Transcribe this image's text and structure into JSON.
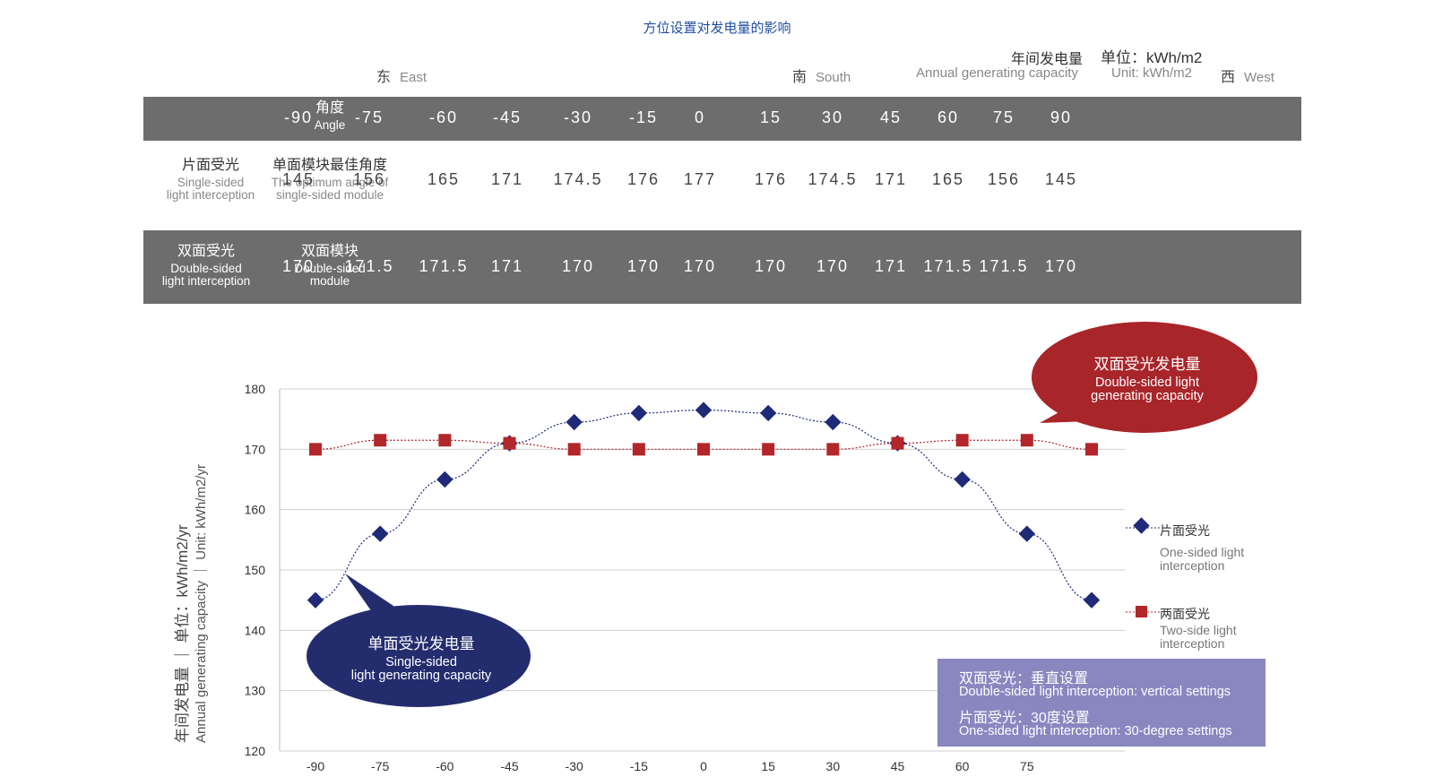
{
  "title": "方位设置对发电量的影响",
  "header": {
    "east_zh": "东",
    "east_en": "East",
    "south_zh": "南",
    "south_en": "South",
    "west_zh": "西",
    "west_en": "West",
    "annual_zh": "年间发电量",
    "annual_en": "Annual generating capacity",
    "unit_zh": "单位：kWh/m2",
    "unit_en": "Unit: kWh/m2"
  },
  "table": {
    "angle_zh": "角度",
    "angle_en": "Angle",
    "angles": [
      "-90",
      "-75",
      "-60",
      "-45",
      "-30",
      "-15",
      "0",
      "15",
      "30",
      "45",
      "60",
      "75",
      "90"
    ],
    "single_label_zh": "片面受光",
    "single_label_en1": "Single-sided",
    "single_label_en2": "light interception",
    "single_module_zh": "单面模块最佳角度",
    "single_module_en1": "The optimum angle of",
    "single_module_en2": "single-sided module",
    "single_values": [
      "145",
      "156",
      "165",
      "171",
      "174.5",
      "176",
      "177",
      "176",
      "174.5",
      "171",
      "165",
      "156",
      "145"
    ],
    "double_label_zh": "双面受光",
    "double_label_en1": "Double-sided",
    "double_label_en2": "light interception",
    "double_module_zh": "双面模块",
    "double_module_en1": "Double-sided",
    "double_module_en2": "module",
    "double_values": [
      "170",
      "171.5",
      "171.5",
      "171",
      "170",
      "170",
      "170",
      "170",
      "170",
      "171",
      "171.5",
      "171.5",
      "170"
    ]
  },
  "bubbles": {
    "red_zh": "双面受光发电量",
    "red_en1": "Double-sided light",
    "red_en2": "generating capacity",
    "blue_zh": "单面受光发电量",
    "blue_en1": "Single-sided",
    "blue_en2": "light generating capacity"
  },
  "legend": {
    "one_zh": "片面受光",
    "one_en1": "One-sided light",
    "one_en2": "interception",
    "two_zh": "两面受光",
    "two_en1": "Two-side light",
    "two_en2": "interception"
  },
  "note": {
    "line1_zh": "双面受光：垂直设置",
    "line1_en": "Double-sided light interception: vertical settings",
    "line2_zh": "片面受光：30度设置",
    "line2_en": "One-sided light interception: 30-degree settings"
  },
  "colors": {
    "blue": "#1f2a78",
    "red": "#b3262a",
    "bubble_red": "#a8252a",
    "bubble_blue": "#232d6e",
    "note_bg": "#8a86c0"
  },
  "chart_data": {
    "type": "line",
    "x": [
      -90,
      -75,
      -60,
      -45,
      -30,
      -15,
      0,
      15,
      30,
      45,
      60,
      75,
      90
    ],
    "x_tick_labels": [
      "-90",
      "-75",
      "-60",
      "-45",
      "-30",
      "-15",
      "0",
      "15",
      "30",
      "45",
      "60",
      "75"
    ],
    "y_tick_labels": [
      "180",
      "170",
      "160",
      "150",
      "140",
      "130",
      "120"
    ],
    "ylim": [
      120,
      180
    ],
    "ylabel_zh": "年间发电量 ｜ 单位：kWh/m2/yr",
    "ylabel_en": "Annual generating capacity ｜ Unit: kWh/m2/yr",
    "series": [
      {
        "name": "片面受光",
        "marker": "diamond",
        "color": "#1f2a78",
        "values": [
          145,
          156,
          165,
          171,
          174.5,
          176,
          176.5,
          176,
          174.5,
          171,
          165,
          156,
          145
        ]
      },
      {
        "name": "两面受光",
        "marker": "square",
        "color": "#b3262a",
        "values": [
          170,
          171.5,
          171.5,
          171,
          170,
          170,
          170,
          170,
          170,
          171,
          171.5,
          171.5,
          170
        ]
      }
    ],
    "grid": true,
    "legend_position": "right"
  }
}
